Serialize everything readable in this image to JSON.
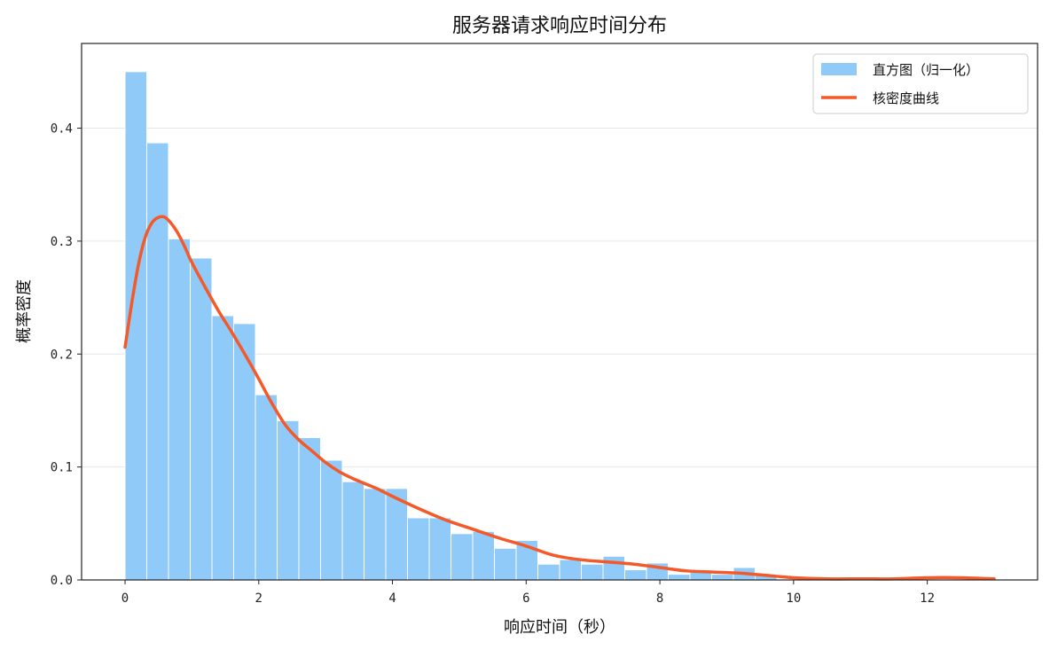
{
  "chart_data": {
    "type": "bar",
    "title": "服务器请求响应时间分布",
    "xlabel": "响应时间（秒）",
    "ylabel": "概率密度",
    "xlim": [
      -0.65,
      13.65
    ],
    "ylim": [
      0,
      0.475
    ],
    "xticks": [
      0,
      2,
      4,
      6,
      8,
      10,
      12
    ],
    "yticks": [
      0.0,
      0.1,
      0.2,
      0.3,
      0.4
    ],
    "ytick_labels": [
      "0.0",
      "0.1",
      "0.2",
      "0.3",
      "0.4"
    ],
    "grid": "horizontal",
    "legend_position": "top-right",
    "histogram": {
      "name": "直方图（归一化）",
      "color": "#90CAF9",
      "edge_color": "#ffffff",
      "bin_width": 0.325,
      "bins": [
        {
          "x0": 0.0,
          "value": 0.45
        },
        {
          "x0": 0.325,
          "value": 0.387
        },
        {
          "x0": 0.65,
          "value": 0.302
        },
        {
          "x0": 0.975,
          "value": 0.285
        },
        {
          "x0": 1.3,
          "value": 0.234
        },
        {
          "x0": 1.625,
          "value": 0.227
        },
        {
          "x0": 1.95,
          "value": 0.164
        },
        {
          "x0": 2.275,
          "value": 0.141
        },
        {
          "x0": 2.6,
          "value": 0.126
        },
        {
          "x0": 2.925,
          "value": 0.106
        },
        {
          "x0": 3.25,
          "value": 0.087
        },
        {
          "x0": 3.575,
          "value": 0.081
        },
        {
          "x0": 3.9,
          "value": 0.081
        },
        {
          "x0": 4.225,
          "value": 0.055
        },
        {
          "x0": 4.55,
          "value": 0.055
        },
        {
          "x0": 4.875,
          "value": 0.041
        },
        {
          "x0": 5.2,
          "value": 0.043
        },
        {
          "x0": 5.525,
          "value": 0.028
        },
        {
          "x0": 5.85,
          "value": 0.035
        },
        {
          "x0": 6.175,
          "value": 0.014
        },
        {
          "x0": 6.5,
          "value": 0.018
        },
        {
          "x0": 6.825,
          "value": 0.014
        },
        {
          "x0": 7.15,
          "value": 0.021
        },
        {
          "x0": 7.475,
          "value": 0.009
        },
        {
          "x0": 7.8,
          "value": 0.015
        },
        {
          "x0": 8.125,
          "value": 0.005
        },
        {
          "x0": 8.45,
          "value": 0.007
        },
        {
          "x0": 8.775,
          "value": 0.005
        },
        {
          "x0": 9.1,
          "value": 0.011
        },
        {
          "x0": 9.425,
          "value": 0.004
        },
        {
          "x0": 9.75,
          "value": 0.0
        },
        {
          "x0": 10.075,
          "value": 0.0
        },
        {
          "x0": 10.4,
          "value": 0.0
        },
        {
          "x0": 10.725,
          "value": 0.0
        },
        {
          "x0": 11.05,
          "value": 0.0
        },
        {
          "x0": 11.375,
          "value": 0.0
        },
        {
          "x0": 11.7,
          "value": 0.0
        },
        {
          "x0": 12.025,
          "value": 0.0
        },
        {
          "x0": 12.35,
          "value": 0.0
        },
        {
          "x0": 12.675,
          "value": 0.0
        }
      ]
    },
    "kde": {
      "name": "核密度曲线",
      "color": "#F4592A",
      "x": [
        0.0,
        0.1,
        0.2,
        0.3,
        0.4,
        0.5,
        0.6,
        0.7,
        0.8,
        0.9,
        1.0,
        1.2,
        1.4,
        1.6,
        1.8,
        2.0,
        2.2,
        2.4,
        2.6,
        2.8,
        3.0,
        3.2,
        3.4,
        3.6,
        3.8,
        4.0,
        4.4,
        4.8,
        5.2,
        5.6,
        6.0,
        6.4,
        6.8,
        7.2,
        7.6,
        8.0,
        8.4,
        8.8,
        9.2,
        9.6,
        10.0,
        10.5,
        11.0,
        11.5,
        12.0,
        12.5,
        13.0
      ],
      "y": [
        0.206,
        0.245,
        0.279,
        0.303,
        0.316,
        0.321,
        0.321,
        0.315,
        0.306,
        0.294,
        0.281,
        0.259,
        0.238,
        0.219,
        0.199,
        0.178,
        0.156,
        0.137,
        0.124,
        0.114,
        0.104,
        0.096,
        0.09,
        0.085,
        0.08,
        0.074,
        0.063,
        0.053,
        0.045,
        0.037,
        0.03,
        0.022,
        0.018,
        0.016,
        0.014,
        0.011,
        0.008,
        0.007,
        0.006,
        0.004,
        0.002,
        0.001,
        0.001,
        0.001,
        0.002,
        0.002,
        0.001
      ]
    }
  }
}
